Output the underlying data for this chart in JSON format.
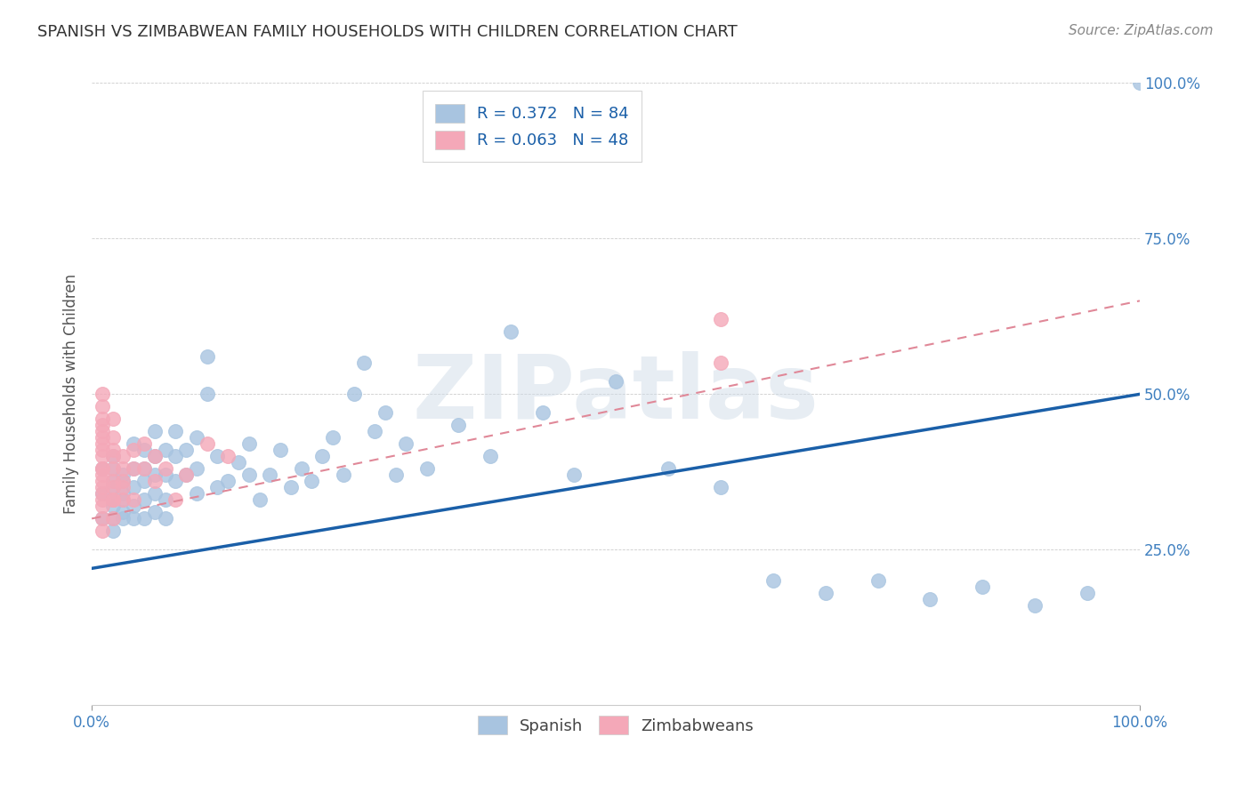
{
  "title": "SPANISH VS ZIMBABWEAN FAMILY HOUSEHOLDS WITH CHILDREN CORRELATION CHART",
  "source": "Source: ZipAtlas.com",
  "ylabel": "Family Households with Children",
  "background_color": "#ffffff",
  "title_fontsize": 13,
  "title_color": "#333333",
  "watermark": "ZIPatlas",
  "spanish_R": 0.372,
  "spanish_N": 84,
  "zimbabwean_R": 0.063,
  "zimbabwean_N": 48,
  "spanish_color": "#a8c4e0",
  "zimbabwean_color": "#f4a8b8",
  "spanish_line_color": "#1a5fa8",
  "zimbabwean_line_color": "#e08898",
  "tick_color": "#4080c0",
  "xlim": [
    0.0,
    1.0
  ],
  "ylim": [
    0.0,
    1.0
  ],
  "spanish_x": [
    0.01,
    0.01,
    0.01,
    0.02,
    0.02,
    0.02,
    0.02,
    0.02,
    0.02,
    0.02,
    0.02,
    0.03,
    0.03,
    0.03,
    0.03,
    0.03,
    0.03,
    0.04,
    0.04,
    0.04,
    0.04,
    0.04,
    0.05,
    0.05,
    0.05,
    0.05,
    0.05,
    0.06,
    0.06,
    0.06,
    0.06,
    0.06,
    0.07,
    0.07,
    0.07,
    0.07,
    0.08,
    0.08,
    0.08,
    0.09,
    0.09,
    0.1,
    0.1,
    0.1,
    0.11,
    0.11,
    0.12,
    0.12,
    0.13,
    0.14,
    0.15,
    0.15,
    0.16,
    0.17,
    0.18,
    0.19,
    0.2,
    0.21,
    0.22,
    0.23,
    0.24,
    0.25,
    0.26,
    0.27,
    0.28,
    0.29,
    0.3,
    0.32,
    0.35,
    0.38,
    0.4,
    0.43,
    0.46,
    0.5,
    0.55,
    0.6,
    0.65,
    0.7,
    0.75,
    0.8,
    0.85,
    0.9,
    0.95,
    1.0
  ],
  "spanish_y": [
    0.34,
    0.3,
    0.38,
    0.32,
    0.35,
    0.3,
    0.28,
    0.36,
    0.33,
    0.38,
    0.4,
    0.31,
    0.34,
    0.37,
    0.3,
    0.33,
    0.36,
    0.32,
    0.35,
    0.38,
    0.3,
    0.42,
    0.33,
    0.36,
    0.3,
    0.38,
    0.41,
    0.34,
    0.37,
    0.31,
    0.4,
    0.44,
    0.33,
    0.37,
    0.41,
    0.3,
    0.36,
    0.4,
    0.44,
    0.37,
    0.41,
    0.34,
    0.38,
    0.43,
    0.5,
    0.56,
    0.35,
    0.4,
    0.36,
    0.39,
    0.37,
    0.42,
    0.33,
    0.37,
    0.41,
    0.35,
    0.38,
    0.36,
    0.4,
    0.43,
    0.37,
    0.5,
    0.55,
    0.44,
    0.47,
    0.37,
    0.42,
    0.38,
    0.45,
    0.4,
    0.6,
    0.47,
    0.37,
    0.52,
    0.38,
    0.35,
    0.2,
    0.18,
    0.2,
    0.17,
    0.19,
    0.16,
    0.18,
    1.0
  ],
  "zimbabwean_x": [
    0.01,
    0.01,
    0.01,
    0.01,
    0.01,
    0.01,
    0.01,
    0.01,
    0.01,
    0.01,
    0.01,
    0.01,
    0.01,
    0.01,
    0.01,
    0.01,
    0.01,
    0.01,
    0.01,
    0.02,
    0.02,
    0.02,
    0.02,
    0.02,
    0.02,
    0.02,
    0.02,
    0.02,
    0.02,
    0.03,
    0.03,
    0.03,
    0.03,
    0.03,
    0.04,
    0.04,
    0.04,
    0.05,
    0.05,
    0.06,
    0.06,
    0.07,
    0.08,
    0.09,
    0.11,
    0.13,
    0.6,
    0.6
  ],
  "zimbabwean_y": [
    0.33,
    0.35,
    0.38,
    0.4,
    0.42,
    0.36,
    0.3,
    0.32,
    0.45,
    0.48,
    0.34,
    0.37,
    0.43,
    0.28,
    0.5,
    0.44,
    0.38,
    0.41,
    0.46,
    0.33,
    0.36,
    0.4,
    0.43,
    0.38,
    0.35,
    0.41,
    0.3,
    0.46,
    0.33,
    0.36,
    0.4,
    0.38,
    0.33,
    0.35,
    0.38,
    0.41,
    0.33,
    0.38,
    0.42,
    0.36,
    0.4,
    0.38,
    0.33,
    0.37,
    0.42,
    0.4,
    0.62,
    0.55
  ],
  "sp_line_x0": 0.0,
  "sp_line_y0": 0.22,
  "sp_line_x1": 1.0,
  "sp_line_y1": 0.5,
  "zim_line_x0": 0.0,
  "zim_line_y0": 0.3,
  "zim_line_x1": 1.0,
  "zim_line_y1": 0.65
}
